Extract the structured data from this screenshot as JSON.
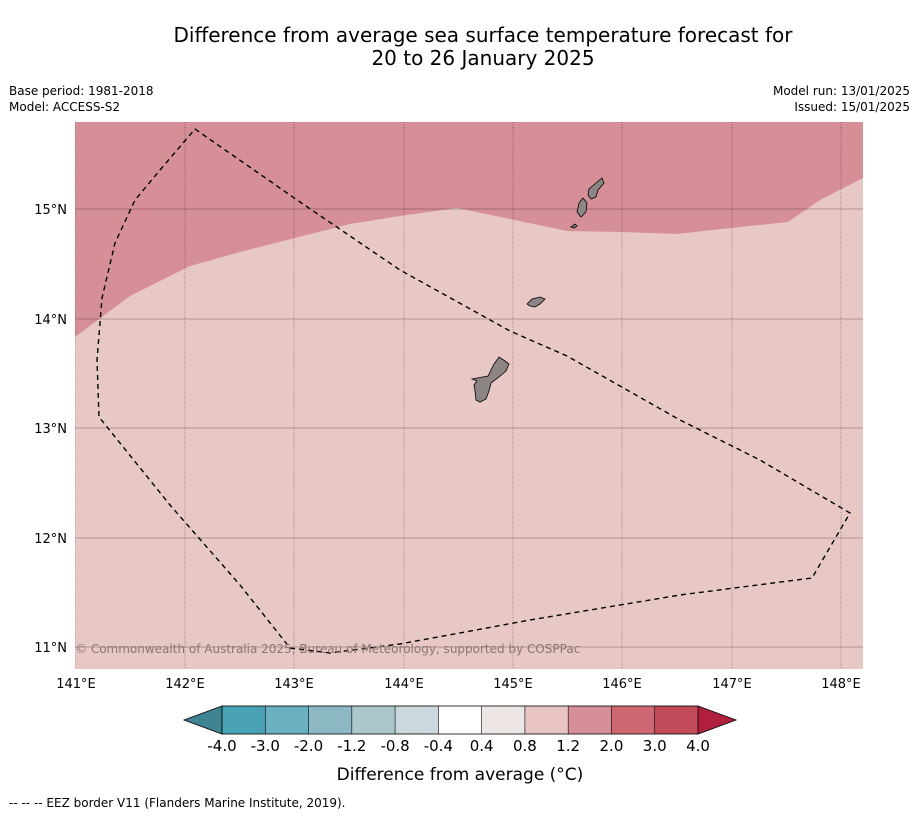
{
  "title": {
    "line1": "Difference from average sea surface temperature forecast for",
    "line2": "20 to 26 January 2025"
  },
  "info": {
    "base_period": "Base period: 1981-2018",
    "model": "Model: ACCESS-S2",
    "model_run": "Model run: 13/01/2025",
    "issued": "Issued: 15/01/2025"
  },
  "map": {
    "lon_ticks": [
      "141°E",
      "142°E",
      "143°E",
      "144°E",
      "145°E",
      "146°E",
      "147°E",
      "148°E"
    ],
    "lat_ticks": [
      "15°N",
      "14°N",
      "13°N",
      "12°N",
      "11°N"
    ],
    "lon_range": [
      141.0,
      148.2
    ],
    "lat_range": [
      10.8,
      15.8
    ],
    "copyright": "© Commonwealth of Australia 2025, Bureau of Meteorology, supported by COSPPac",
    "colors": {
      "band_0_4_to_0_8": "#e8c8c4",
      "band_1_2_to_2_0": "#d68f96",
      "land": "#8c8583",
      "gridline": "#000000"
    }
  },
  "colorbar": {
    "tick_labels": [
      "-4.0",
      "-3.0",
      "-2.0",
      "-1.2",
      "-0.8",
      "-0.4",
      "0.4",
      "0.8",
      "1.2",
      "2.0",
      "3.0",
      "4.0"
    ],
    "colors": [
      "#4aa3b5",
      "#6ab0bf",
      "#8cb8c4",
      "#a9c7cc",
      "#c9d9de",
      "#ffffff",
      "#ede6e4",
      "#e8c4c2",
      "#d68f96",
      "#cd6872",
      "#c14a5b"
    ],
    "extend_low_color": "#418491",
    "extend_high_color": "#b11f3e",
    "label": "Difference from average (°C)"
  },
  "footnote": "--  --  -- EEZ border V11 (Flanders Marine Institute, 2019)."
}
